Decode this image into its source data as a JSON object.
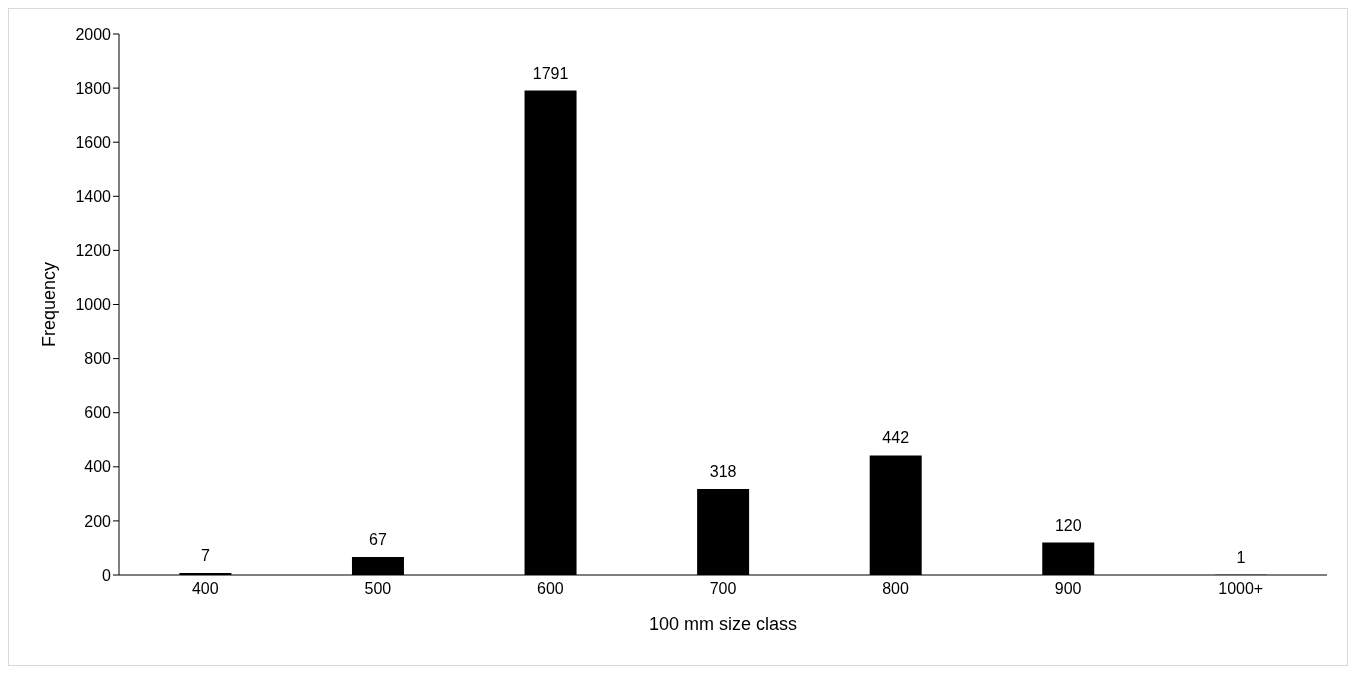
{
  "chart_data": {
    "type": "bar",
    "xlabel": "100 mm size class",
    "ylabel": "Frequency",
    "categories": [
      "400",
      "500",
      "600",
      "700",
      "800",
      "900",
      "1000+"
    ],
    "values": [
      7,
      67,
      1791,
      318,
      442,
      120,
      1
    ],
    "color": "#000000",
    "ylim": [
      0,
      2000
    ],
    "yticks": [
      0,
      200,
      400,
      600,
      800,
      1000,
      1200,
      1400,
      1600,
      1800,
      2000
    ],
    "grid": false,
    "data_labels": true
  }
}
